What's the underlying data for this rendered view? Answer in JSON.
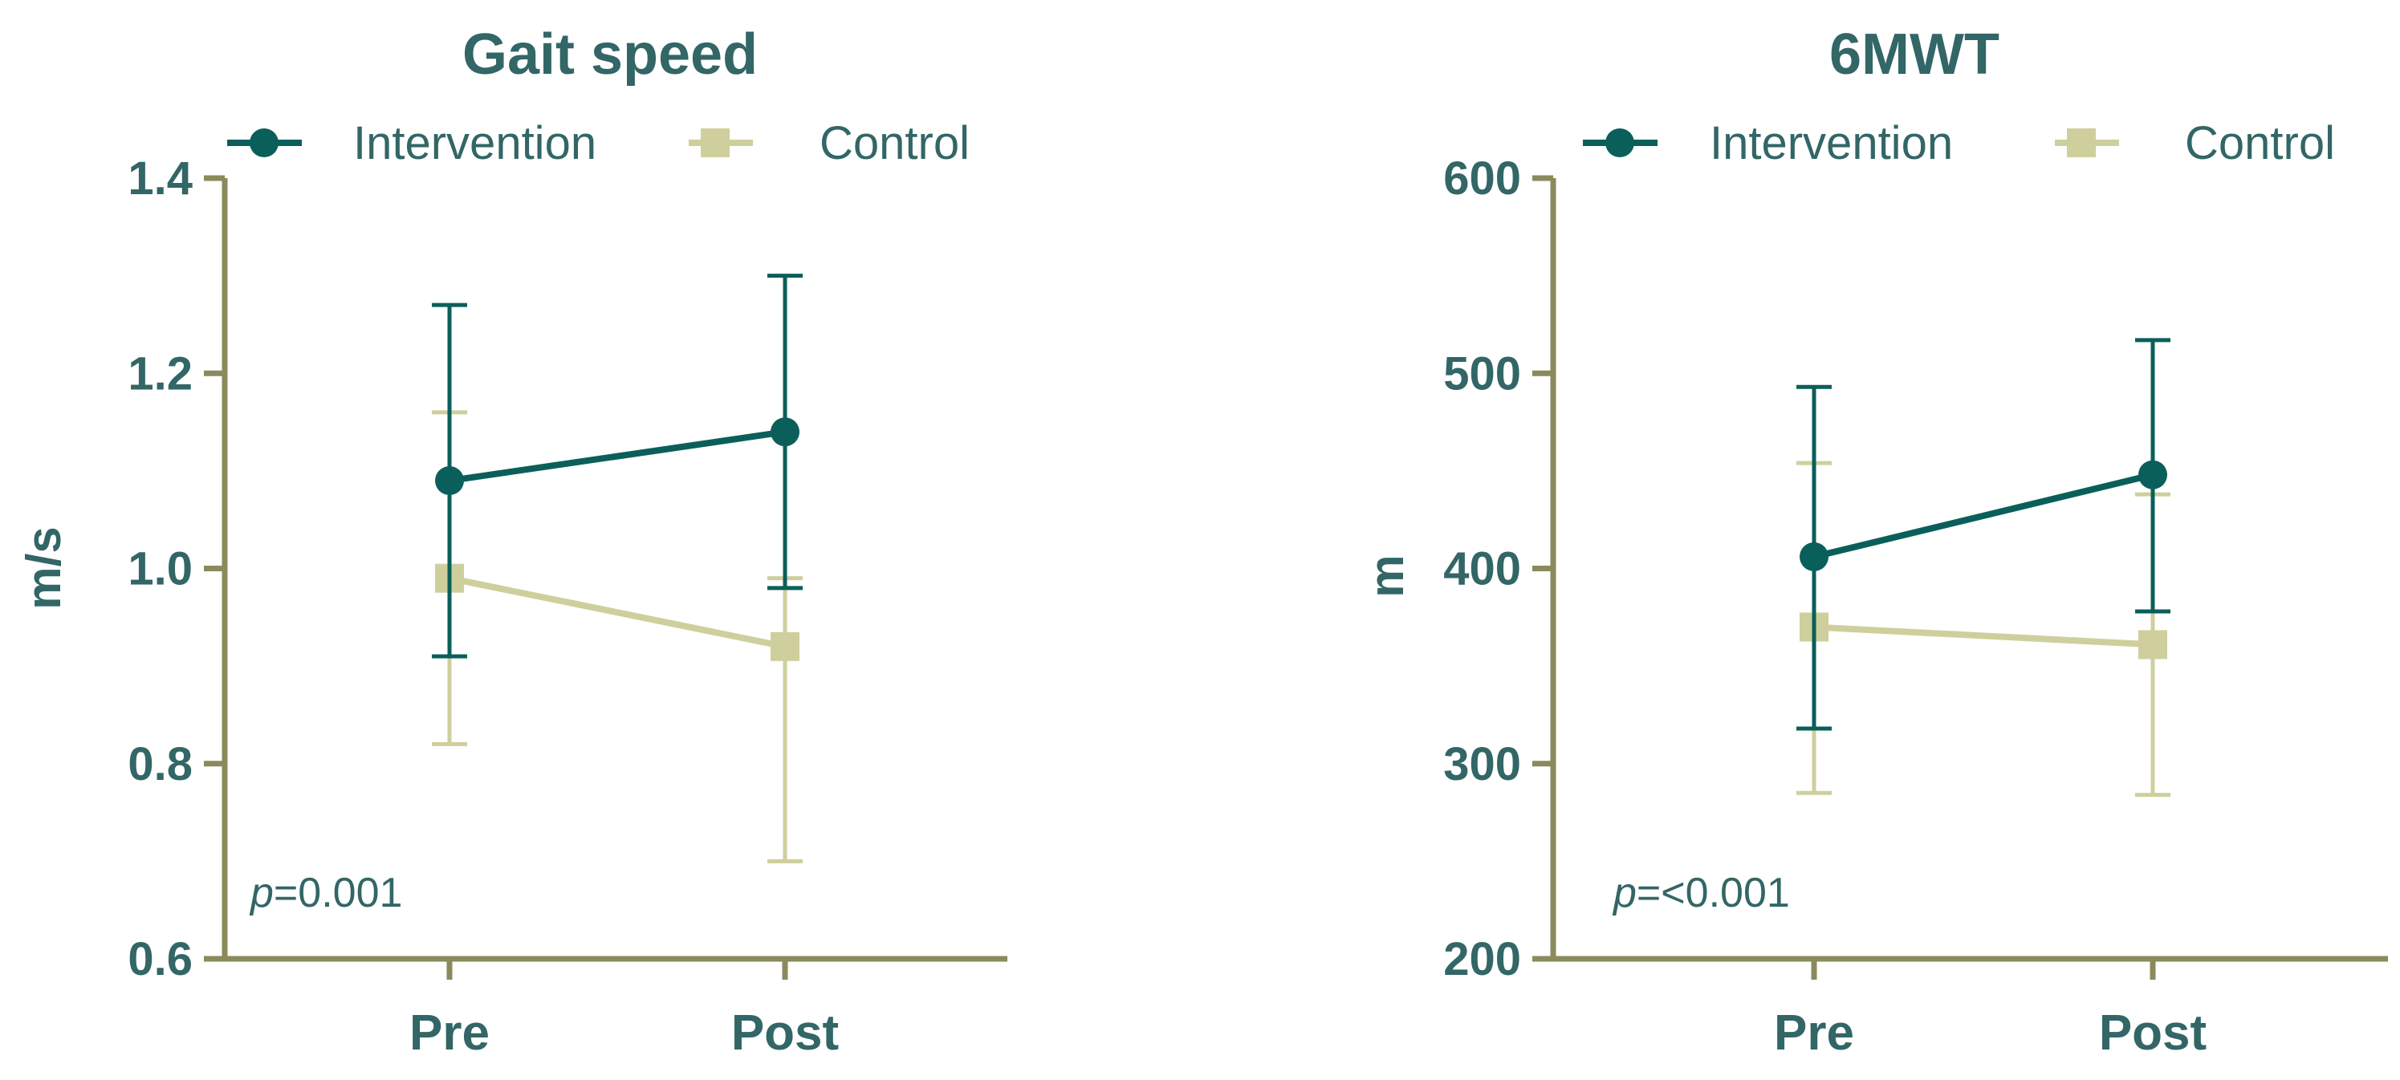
{
  "colors": {
    "axis": "#8a8a5c",
    "text": "#336666",
    "intervention": "#0b5f5a",
    "control": "#cfcf9d"
  },
  "chart_data": [
    {
      "type": "line",
      "title": "Gait speed",
      "ylabel": "m/s",
      "xlabel": "",
      "categories": [
        "Pre",
        "Post"
      ],
      "ylim": [
        0.6,
        1.4
      ],
      "yticks": [
        "0.6",
        "0.8",
        "1.0",
        "1.2",
        "1.4"
      ],
      "ytick_values": [
        0.6,
        0.8,
        1.0,
        1.2,
        1.4
      ],
      "legend": "top",
      "grid": false,
      "annotation": {
        "prefix": "p",
        "text": "=0.001"
      },
      "series": [
        {
          "name": "Intervention",
          "marker": "circle",
          "values": [
            1.09,
            1.14
          ],
          "err_low": [
            0.91,
            0.98
          ],
          "err_high": [
            1.27,
            1.3
          ]
        },
        {
          "name": "Control",
          "marker": "square",
          "values": [
            0.99,
            0.92
          ],
          "err_low": [
            0.82,
            0.7
          ],
          "err_high": [
            1.16,
            0.99
          ]
        }
      ]
    },
    {
      "type": "line",
      "title": "6MWT",
      "ylabel": "m",
      "xlabel": "",
      "categories": [
        "Pre",
        "Post"
      ],
      "ylim": [
        200,
        600
      ],
      "yticks": [
        "200",
        "300",
        "400",
        "500",
        "600"
      ],
      "ytick_values": [
        200,
        300,
        400,
        500,
        600
      ],
      "legend": "top",
      "grid": false,
      "annotation": {
        "prefix": "p",
        "text": "=<0.001"
      },
      "series": [
        {
          "name": "Intervention",
          "marker": "circle",
          "values": [
            406,
            448
          ],
          "err_low": [
            318,
            378
          ],
          "err_high": [
            493,
            517
          ]
        },
        {
          "name": "Control",
          "marker": "square",
          "values": [
            370,
            361
          ],
          "err_low": [
            285,
            284
          ],
          "err_high": [
            454,
            438
          ]
        }
      ]
    }
  ]
}
